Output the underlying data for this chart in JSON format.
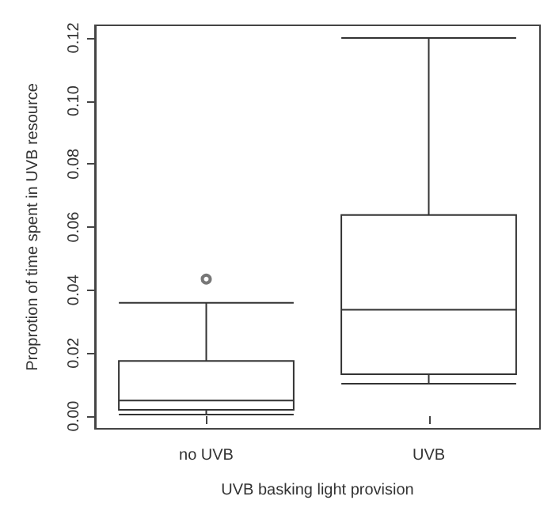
{
  "chart_data": {
    "type": "box",
    "xlabel": "UVB basking light provision",
    "ylabel": "Proprotion of time spent in UVB resource",
    "categories": [
      "no UVB",
      "UVB"
    ],
    "boxes": [
      {
        "low": 0.0005,
        "q1": 0.002,
        "median": 0.005,
        "q3": 0.0175,
        "high": 0.036,
        "outliers": [
          0.0435
        ]
      },
      {
        "low": 0.0103,
        "q1": 0.0133,
        "median": 0.0338,
        "q3": 0.0638,
        "high": 0.12
      }
    ],
    "ylim": [
      -0.004,
      0.124
    ],
    "yticks": [
      {
        "value": 0,
        "label": "0.00"
      },
      {
        "value": 0.02,
        "label": "0.02"
      },
      {
        "value": 0.04,
        "label": "0.04"
      },
      {
        "value": 0.06,
        "label": "0.06"
      },
      {
        "value": 0.08,
        "label": "0.08"
      },
      {
        "value": 0.1,
        "label": "0.10"
      },
      {
        "value": 0.12,
        "label": "0.12"
      }
    ]
  }
}
